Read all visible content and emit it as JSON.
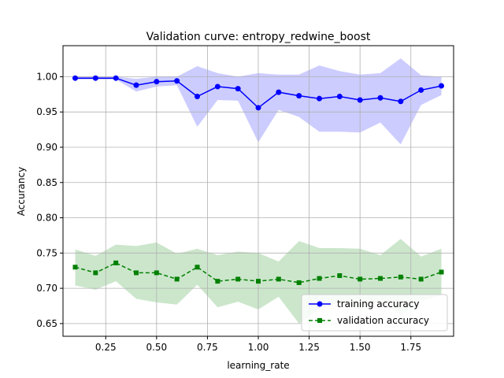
{
  "chart_data": {
    "type": "line",
    "title": "Validation curve: entropy_redwine_boost",
    "xlabel": "learning_rate",
    "ylabel": "Accurancy",
    "xlim": [
      0.04,
      1.96
    ],
    "ylim": [
      0.632,
      1.044
    ],
    "xticks": [
      "0.25",
      "0.50",
      "0.75",
      "1.00",
      "1.25",
      "1.50",
      "1.75"
    ],
    "xtick_values": [
      0.25,
      0.5,
      0.75,
      1.0,
      1.25,
      1.5,
      1.75
    ],
    "yticks": [
      "0.65",
      "0.70",
      "0.75",
      "0.80",
      "0.85",
      "0.90",
      "0.95",
      "1.00"
    ],
    "ytick_values": [
      0.65,
      0.7,
      0.75,
      0.8,
      0.85,
      0.9,
      0.95,
      1.0
    ],
    "grid": true,
    "legend_position": "lower-right",
    "x": [
      0.1,
      0.2,
      0.3,
      0.4,
      0.5,
      0.6,
      0.7,
      0.8,
      0.9,
      1.0,
      1.1,
      1.2,
      1.3,
      1.4,
      1.5,
      1.6,
      1.7,
      1.8,
      1.9
    ],
    "series": [
      {
        "name": "training accuracy",
        "color": "#0000ff",
        "band_color": "#ccccff",
        "marker": "circle",
        "linestyle": "solid",
        "values": [
          0.998,
          0.998,
          0.998,
          0.988,
          0.993,
          0.994,
          0.972,
          0.986,
          0.983,
          0.956,
          0.978,
          0.973,
          0.969,
          0.972,
          0.967,
          0.97,
          0.965,
          0.981,
          0.987
        ],
        "upper": [
          1.0,
          1.0,
          1.0,
          0.997,
          1.0,
          1.0,
          1.015,
          1.005,
          1.0,
          1.005,
          1.003,
          1.003,
          1.016,
          1.008,
          1.003,
          1.005,
          1.026,
          1.002,
          1.0
        ],
        "lower": [
          0.996,
          0.996,
          0.996,
          0.979,
          0.986,
          0.988,
          0.929,
          0.967,
          0.966,
          0.907,
          0.953,
          0.943,
          0.922,
          0.922,
          0.921,
          0.935,
          0.904,
          0.96,
          0.974
        ]
      },
      {
        "name": "validation accuracy",
        "color": "#008000",
        "band_color": "#cce6cc",
        "marker": "square",
        "linestyle": "dashed",
        "values": [
          0.73,
          0.722,
          0.736,
          0.722,
          0.722,
          0.713,
          0.73,
          0.71,
          0.713,
          0.71,
          0.713,
          0.708,
          0.714,
          0.718,
          0.713,
          0.714,
          0.716,
          0.713,
          0.723
        ],
        "upper": [
          0.755,
          0.746,
          0.762,
          0.76,
          0.765,
          0.749,
          0.756,
          0.747,
          0.752,
          0.75,
          0.738,
          0.767,
          0.757,
          0.757,
          0.756,
          0.747,
          0.77,
          0.745,
          0.756
        ],
        "lower": [
          0.704,
          0.698,
          0.71,
          0.685,
          0.68,
          0.677,
          0.705,
          0.673,
          0.681,
          0.67,
          0.688,
          0.65,
          0.671,
          0.68,
          0.67,
          0.681,
          0.662,
          0.682,
          0.69
        ]
      }
    ]
  }
}
